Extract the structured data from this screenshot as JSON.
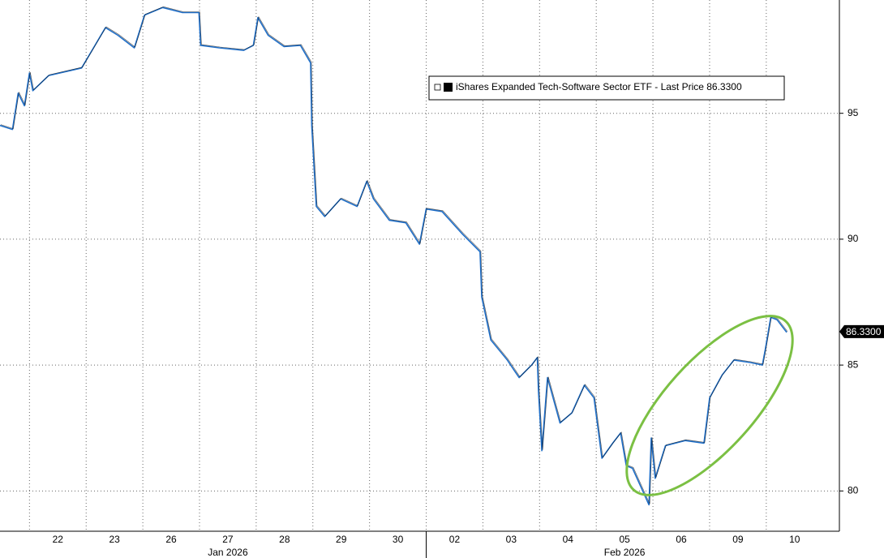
{
  "chart_data": {
    "type": "line",
    "series": [
      {
        "name": "iShares Expanded Tech-Software Sector ETF - Last Price 86.3300",
        "color": "#1f6fc9",
        "x": [
          -0.52,
          -0.3,
          -0.2,
          -0.09,
          0,
          0.06,
          0.34,
          0.92,
          1.13,
          1.34,
          1.56,
          1.85,
          2.03,
          2.35,
          2.7,
          2.99,
          3.02,
          3.35,
          3.78,
          3.95,
          4.03,
          4.21,
          4.49,
          4.78,
          4.96,
          4.98,
          5.06,
          5.21,
          5.49,
          5.78,
          5.95,
          6.07,
          6.35,
          6.64,
          6.88,
          7.0,
          7.28,
          7.64,
          7.95,
          7.98,
          8.14,
          8.43,
          8.64,
          8.86,
          8.96,
          8.98,
          9.04,
          9.14,
          9.36,
          9.57,
          9.79,
          9.96,
          10.1,
          10.29,
          10.43,
          10.53,
          10.64,
          10.82,
          10.93,
          10.97,
          11.04,
          11.22,
          11.57,
          11.9,
          12.0,
          12.22,
          12.43,
          12.72,
          12.93,
          12.98,
          13.08,
          13.19,
          13.36
        ],
        "values": [
          94.52,
          94.36,
          95.8,
          95.3,
          96.6,
          95.9,
          96.5,
          96.8,
          97.6,
          98.4,
          98.1,
          97.6,
          98.9,
          99.2,
          99.0,
          99.0,
          97.7,
          97.6,
          97.5,
          97.7,
          98.8,
          98.1,
          97.65,
          97.7,
          97.0,
          94.5,
          91.3,
          90.9,
          91.6,
          91.3,
          92.3,
          91.6,
          90.75,
          90.65,
          89.8,
          91.2,
          91.1,
          90.2,
          89.5,
          87.7,
          86.0,
          85.2,
          84.5,
          85.0,
          85.3,
          84.0,
          81.6,
          84.5,
          82.7,
          83.1,
          84.2,
          83.7,
          81.3,
          81.9,
          82.3,
          81.0,
          80.9,
          80.0,
          79.45,
          82.1,
          80.5,
          81.8,
          82.0,
          81.9,
          83.7,
          84.6,
          85.2,
          85.1,
          85.0,
          85.6,
          86.9,
          86.8,
          86.3
        ]
      }
    ],
    "last_price": 86.33,
    "last_price_label": "86.3300",
    "ylim": [
      78.4,
      99.5
    ],
    "yticks": [
      80,
      85,
      90,
      95
    ],
    "xlim": [
      -0.52,
      14.29
    ],
    "xticks": [
      {
        "value": 0.5,
        "label": "22"
      },
      {
        "value": 1.5,
        "label": "23"
      },
      {
        "value": 2.5,
        "label": "26"
      },
      {
        "value": 3.5,
        "label": "27"
      },
      {
        "value": 4.5,
        "label": "28"
      },
      {
        "value": 5.5,
        "label": "29"
      },
      {
        "value": 6.5,
        "label": "30"
      },
      {
        "value": 7.5,
        "label": "02"
      },
      {
        "value": 8.5,
        "label": "03"
      },
      {
        "value": 9.5,
        "label": "04"
      },
      {
        "value": 10.5,
        "label": "05"
      },
      {
        "value": 11.5,
        "label": "06"
      },
      {
        "value": 12.5,
        "label": "09"
      },
      {
        "value": 13.5,
        "label": "10"
      }
    ],
    "xgrid": [
      0,
      1,
      2,
      3,
      4,
      5,
      6,
      7,
      8,
      9,
      10,
      11,
      12,
      13
    ],
    "months": [
      {
        "value": 3.5,
        "label": "Jan 2026"
      },
      {
        "value": 10.5,
        "label": "Feb 2026"
      }
    ],
    "month_break": 7,
    "grid": true
  }
}
